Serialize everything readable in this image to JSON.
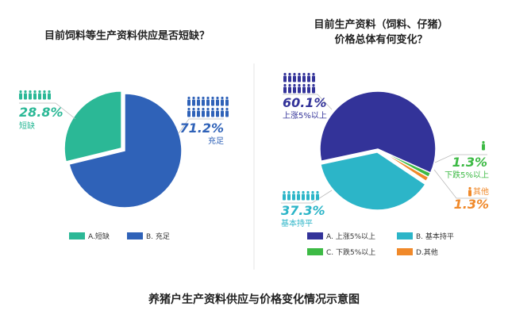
{
  "main_title": "养猪户生产资料供应与价格变化情况示意图",
  "colors": {
    "green": "#2bb896",
    "blue": "#2f62b8",
    "navy": "#333399",
    "cyan": "#2cb5c8",
    "lime": "#3dba45",
    "orange": "#f0892a",
    "text": "#222222"
  },
  "chart_data": [
    {
      "type": "pie",
      "title": "目前饲料等生产资料供应是否短缺？",
      "slices": [
        {
          "legend": "A.短缺",
          "label": "短缺",
          "value": 28.8,
          "value_text": "28.8%",
          "color": "#2bb896",
          "people_icons": 7
        },
        {
          "legend": "B. 充足",
          "label": "充足",
          "value": 71.2,
          "value_text": "71.2%",
          "color": "#2f62b8",
          "people_icons": 18
        }
      ],
      "legend_placement": "bottom"
    },
    {
      "type": "pie",
      "title_lines": [
        "目前生产资料（饲料、仔猪）",
        "价格总体有何变化？"
      ],
      "slices": [
        {
          "legend": "A. 上涨5%以上",
          "label": "上涨5%以上",
          "value": 60.1,
          "value_text": "60.1%",
          "color": "#333399",
          "people_icons": 14
        },
        {
          "legend": "C. 下跌5%以上",
          "label": "下跌5%以上",
          "value": 1.3,
          "value_text": "1.3%",
          "color": "#3dba45",
          "people_icons": 1
        },
        {
          "legend": "D.其他",
          "label": "其他",
          "value": 1.3,
          "value_text": "1.3%",
          "color": "#f0892a",
          "people_icons": 1
        },
        {
          "legend": "B. 基本持平",
          "label": "基本持平",
          "value": 37.3,
          "value_text": "37.3%",
          "color": "#2cb5c8",
          "people_icons": 8
        }
      ],
      "legend_placement": "bottom"
    }
  ]
}
